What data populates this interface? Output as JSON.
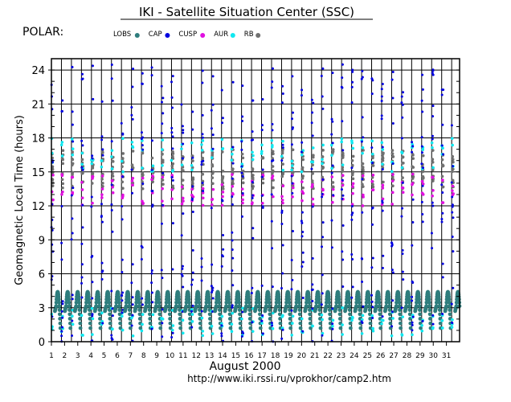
{
  "header": {
    "title": "IKI - Satellite Situation Center (SSC)",
    "satellite": "POLAR:"
  },
  "legend": [
    {
      "label": "LOBS",
      "color": "#2e7d7d",
      "icon": "dot"
    },
    {
      "label": "CAP",
      "color": "#0000e0",
      "icon": "dot"
    },
    {
      "label": "CUSP",
      "color": "#e010e0",
      "icon": "dot"
    },
    {
      "label": "AUR",
      "color": "#10e8f0",
      "icon": "dot"
    },
    {
      "label": "RB",
      "color": "#707070",
      "icon": "dot"
    }
  ],
  "footer": {
    "month_year": "August   2000",
    "url": "http://www.iki.rssi.ru/vprokhor/camp2.htm"
  },
  "chart_data": {
    "type": "scatter",
    "ylabel": "Geomagnetic  Local Time  (hours)",
    "xlabel": "August   2000",
    "ylim": [
      0,
      25
    ],
    "yticks": [
      0,
      3,
      6,
      9,
      12,
      15,
      18,
      21,
      24
    ],
    "ytick_labels": [
      "0",
      "3",
      "6",
      "9",
      "12",
      "15",
      "18",
      "21",
      "24"
    ],
    "xlim": [
      1,
      32
    ],
    "xticks": [
      1,
      2,
      3,
      4,
      5,
      6,
      7,
      8,
      9,
      10,
      11,
      12,
      13,
      14,
      15,
      16,
      17,
      18,
      19,
      20,
      21,
      22,
      23,
      24,
      25,
      26,
      27,
      28,
      29,
      30,
      31
    ],
    "xtick_labels": [
      "1",
      "2",
      "3",
      "4",
      "5",
      "6",
      "7",
      "8",
      "9",
      "10",
      "11",
      "12",
      "13",
      "14",
      "15",
      "16",
      "17",
      "18",
      "19",
      "20",
      "21",
      "22",
      "23",
      "24",
      "25",
      "26",
      "27",
      "28",
      "29",
      "30",
      "31"
    ],
    "grid": true,
    "orbit_period_days": 0.76,
    "first_orbit_day": 1.0,
    "series": [
      {
        "name": "LOBS",
        "color": "#2e7d7d",
        "pattern": "low GLT loop 1-5 h near perigee"
      },
      {
        "name": "CAP",
        "color": "#0000e0",
        "pattern": "scattered dots 0-24 h along each pass"
      },
      {
        "name": "CUSP",
        "color": "#e010e0",
        "pattern": "12-15 h band"
      },
      {
        "name": "AUR",
        "color": "#10e8f0",
        "pattern": "near 0-3 h and 15-18 h"
      },
      {
        "name": "RB",
        "color": "#707070",
        "pattern": "13-17 h band"
      }
    ]
  }
}
